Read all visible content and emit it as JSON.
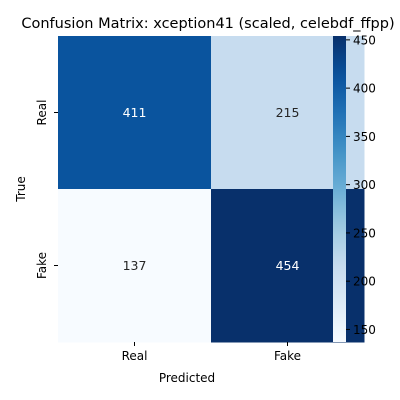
{
  "chart_data": {
    "type": "heatmap",
    "title": "Confusion Matrix: xception41 (scaled, celebdf_ffpp)",
    "xlabel": "Predicted",
    "ylabel": "True",
    "x_categories": [
      "Real",
      "Fake"
    ],
    "y_categories": [
      "Real",
      "Fake"
    ],
    "values": [
      [
        411,
        215
      ],
      [
        137,
        454
      ]
    ],
    "colormap": "Blues",
    "colorbar": {
      "range": [
        137,
        454
      ],
      "ticks": [
        150,
        200,
        250,
        300,
        350,
        400,
        450
      ]
    }
  }
}
